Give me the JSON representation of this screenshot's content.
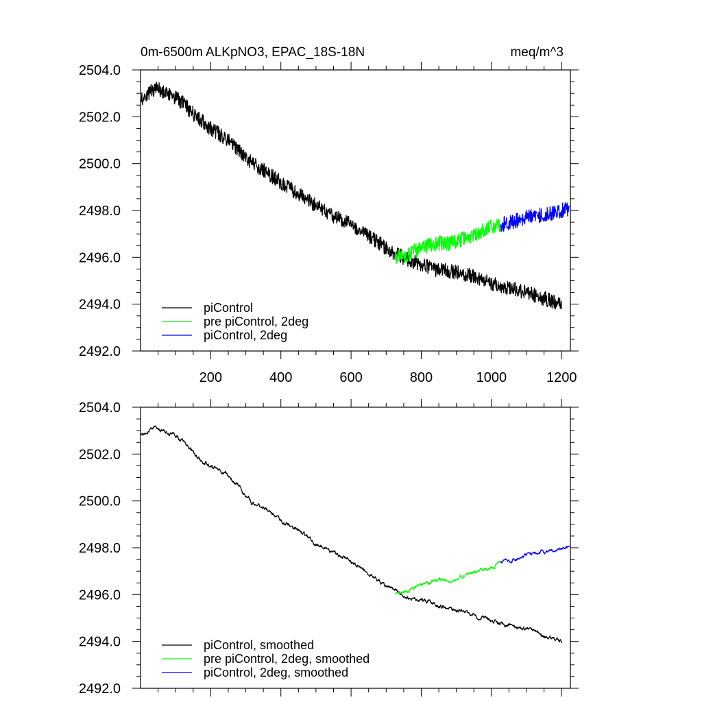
{
  "figure": {
    "title_left": "0m-6500m ALKpNO3, EPAC_18S-18N",
    "title_right": "meq/m^3"
  },
  "chart_data": [
    {
      "type": "line",
      "panel": "top",
      "xlim": [
        0,
        1225
      ],
      "ylim": [
        2492.0,
        2504.0
      ],
      "x_ticks": [
        200,
        400,
        600,
        800,
        1000,
        1200
      ],
      "x_tick_labels": [
        "200",
        "400",
        "600",
        "800",
        "1000",
        "1200"
      ],
      "y_ticks": [
        2492.0,
        2494.0,
        2496.0,
        2498.0,
        2500.0,
        2502.0,
        2504.0
      ],
      "y_tick_labels": [
        "2492.0",
        "2494.0",
        "2496.0",
        "2498.0",
        "2500.0",
        "2502.0",
        "2504.0"
      ],
      "grid": false,
      "legend_position": "bottom-left",
      "series": [
        {
          "name": "piControl",
          "color": "#000000",
          "x": [
            1,
            40,
            80,
            120,
            160,
            200,
            240,
            280,
            320,
            360,
            400,
            440,
            480,
            520,
            560,
            600,
            640,
            680,
            720,
            760,
            800,
            840,
            880,
            920,
            960,
            1000,
            1040,
            1080,
            1120,
            1160,
            1200
          ],
          "y": [
            2502.8,
            2503.2,
            2503.0,
            2502.6,
            2502.0,
            2501.5,
            2501.1,
            2500.6,
            2500.0,
            2499.6,
            2499.2,
            2498.8,
            2498.4,
            2498.0,
            2497.7,
            2497.4,
            2497.0,
            2496.6,
            2496.2,
            2495.9,
            2495.7,
            2495.5,
            2495.4,
            2495.3,
            2495.1,
            2494.9,
            2494.7,
            2494.6,
            2494.4,
            2494.2,
            2494.0
          ]
        },
        {
          "name": "pre piControl, 2deg",
          "color": "#00ff00",
          "x": [
            726,
            760,
            800,
            840,
            880,
            920,
            960,
            1000,
            1026
          ],
          "y": [
            2496.0,
            2496.1,
            2496.4,
            2496.6,
            2496.6,
            2496.8,
            2497.0,
            2497.3,
            2497.4
          ]
        },
        {
          "name": "piControl, 2deg",
          "color": "#0000ff",
          "x": [
            1026,
            1060,
            1100,
            1140,
            1180,
            1222
          ],
          "y": [
            2497.4,
            2497.5,
            2497.7,
            2497.8,
            2497.9,
            2498.1
          ]
        }
      ]
    },
    {
      "type": "line",
      "panel": "bottom",
      "xlim": [
        0,
        1225
      ],
      "ylim": [
        2492.0,
        2504.0
      ],
      "x_ticks": [
        200,
        400,
        600,
        800,
        1000,
        1200
      ],
      "x_tick_labels": [],
      "y_ticks": [
        2492.0,
        2494.0,
        2496.0,
        2498.0,
        2500.0,
        2502.0,
        2504.0
      ],
      "y_tick_labels": [
        "2492.0",
        "2494.0",
        "2496.0",
        "2498.0",
        "2500.0",
        "2502.0",
        "2504.0"
      ],
      "grid": false,
      "legend_position": "bottom-left",
      "series": [
        {
          "name": "piControl, smoothed",
          "color": "#000000",
          "x": [
            1,
            40,
            80,
            120,
            160,
            200,
            240,
            280,
            320,
            360,
            400,
            440,
            480,
            520,
            560,
            600,
            640,
            680,
            720,
            760,
            800,
            840,
            880,
            920,
            960,
            1000,
            1040,
            1080,
            1120,
            1160,
            1200
          ],
          "y": [
            2502.8,
            2503.1,
            2502.9,
            2502.6,
            2501.9,
            2501.5,
            2501.2,
            2500.6,
            2499.9,
            2499.6,
            2499.2,
            2498.8,
            2498.4,
            2498.0,
            2497.7,
            2497.4,
            2497.0,
            2496.6,
            2496.2,
            2495.9,
            2495.8,
            2495.6,
            2495.4,
            2495.3,
            2495.1,
            2494.9,
            2494.7,
            2494.6,
            2494.4,
            2494.2,
            2494.0
          ]
        },
        {
          "name": "pre piControl, 2deg, smoothed",
          "color": "#00ff00",
          "x": [
            726,
            760,
            800,
            840,
            880,
            920,
            960,
            1000,
            1026
          ],
          "y": [
            2496.0,
            2496.1,
            2496.4,
            2496.6,
            2496.6,
            2496.8,
            2497.0,
            2497.2,
            2497.4
          ]
        },
        {
          "name": "piControl, 2deg, smoothed",
          "color": "#0000ff",
          "x": [
            1026,
            1060,
            1100,
            1140,
            1180,
            1222
          ],
          "y": [
            2497.4,
            2497.5,
            2497.7,
            2497.8,
            2497.9,
            2498.1
          ]
        }
      ]
    }
  ]
}
